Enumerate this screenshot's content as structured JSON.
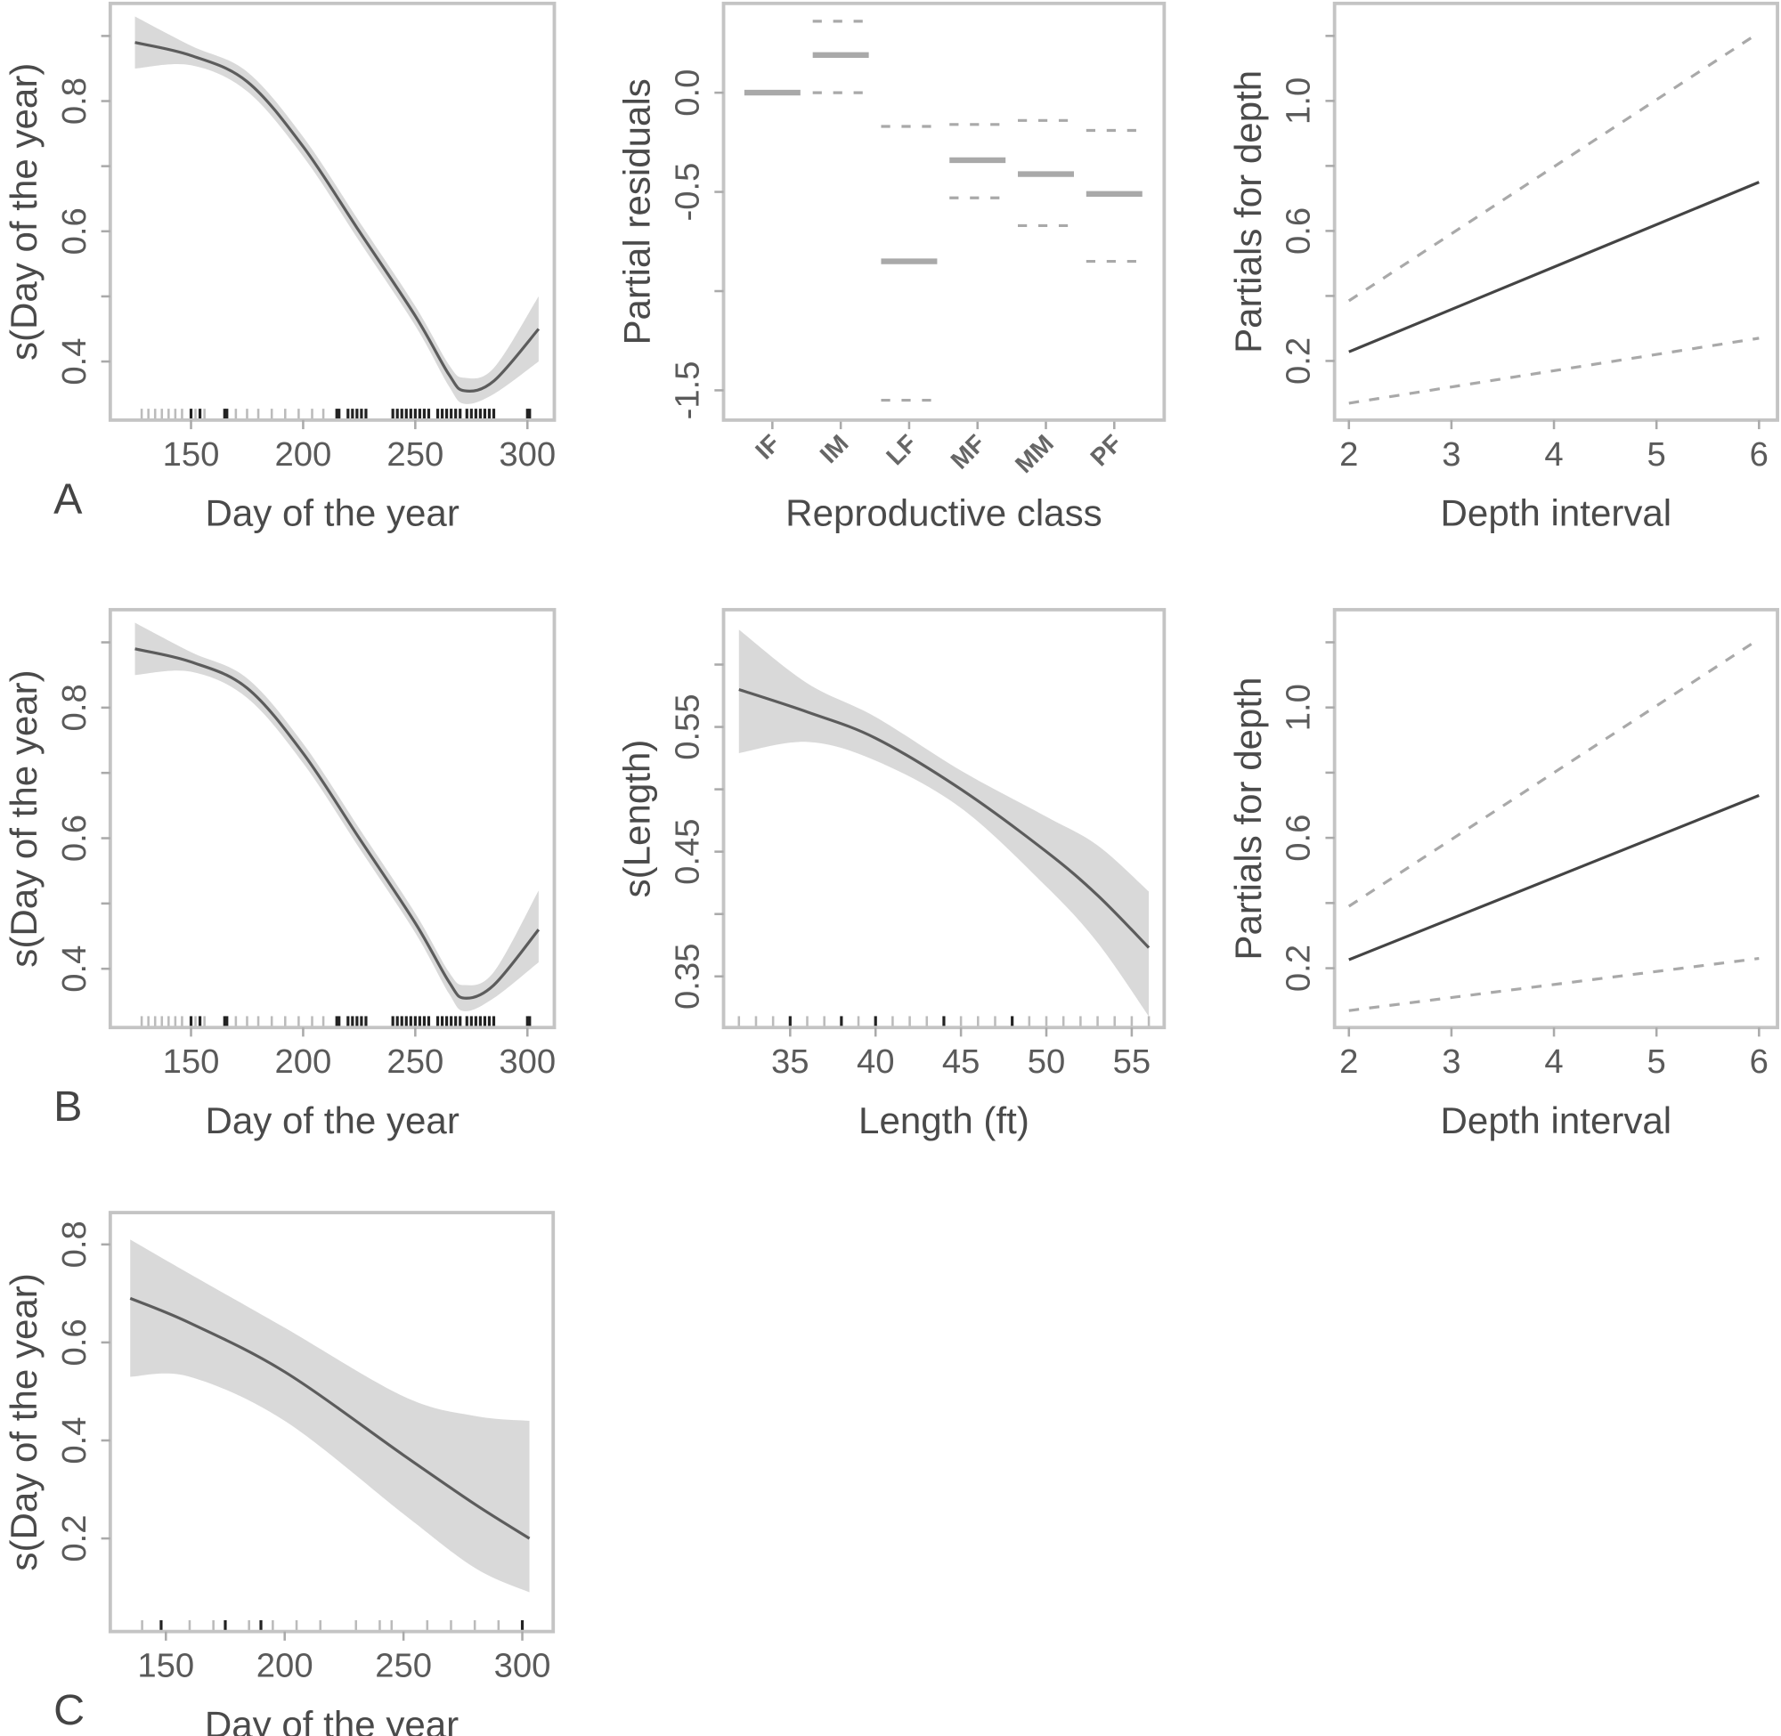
{
  "colors": {
    "band": "#d9d9d9",
    "fit_line": "#5c5c5c",
    "frame": "#c4c4c4",
    "factor": "#a9a9a9",
    "rug_dark": "#222222",
    "rug_light": "#bbbbbb"
  },
  "chart_data": [
    {
      "type": "line",
      "panel_label": "A",
      "xlabel": "Day of the year",
      "ylabel": "s(Day of the year)",
      "xlim": [
        114,
        312
      ],
      "ylim": [
        0.31,
        0.95
      ],
      "x_ticks": [
        150,
        200,
        250,
        300
      ],
      "x_tick_labels": [
        "150",
        "200",
        "250",
        "300"
      ],
      "y_ticks": [
        0.4,
        0.5,
        0.6,
        0.7,
        0.8,
        0.9
      ],
      "y_tick_labels": [
        "0.4",
        "",
        "0.6",
        "",
        "0.8",
        ""
      ],
      "fit": {
        "x": [
          125,
          150,
          175,
          200,
          225,
          250,
          265,
          272,
          285,
          305
        ],
        "y": [
          0.89,
          0.87,
          0.83,
          0.73,
          0.6,
          0.47,
          0.38,
          0.355,
          0.37,
          0.45
        ]
      },
      "ci_upper": [
        0.93,
        0.885,
        0.845,
        0.745,
        0.615,
        0.485,
        0.395,
        0.375,
        0.39,
        0.5
      ],
      "ci_lower": [
        0.85,
        0.855,
        0.815,
        0.715,
        0.585,
        0.455,
        0.362,
        0.335,
        0.35,
        0.4
      ],
      "rug_light": [
        128,
        131,
        134,
        137,
        140,
        143,
        146,
        152,
        156,
        170,
        175,
        180,
        186,
        192,
        198,
        204,
        209
      ],
      "rug_dark": [
        150,
        154,
        165,
        166,
        215,
        216,
        220,
        222,
        224,
        226,
        228,
        240,
        242,
        244,
        246,
        248,
        250,
        252,
        254,
        256,
        260,
        262,
        264,
        266,
        268,
        270,
        273,
        275,
        277,
        279,
        281,
        283,
        285,
        300,
        301
      ]
    },
    {
      "type": "bar",
      "panel_label": "",
      "xlabel": "Reproductive class",
      "ylabel": "Partial residuals",
      "categories": [
        "IF",
        "IM",
        "LF",
        "MF",
        "MM",
        "PF"
      ],
      "xlim": [
        0.286,
        6.73
      ],
      "ylim": [
        -1.65,
        0.45
      ],
      "y_ticks": [
        0.0,
        -0.5,
        -1.0,
        -1.5
      ],
      "y_tick_labels": [
        "0.0",
        "-0.5",
        "",
        "-1.5"
      ],
      "values": [
        0.0,
        0.19,
        -0.85,
        -0.34,
        -0.41,
        -0.51
      ],
      "ci_upper": [
        null,
        0.36,
        -0.17,
        -0.16,
        -0.14,
        -0.19
      ],
      "ci_lower": [
        null,
        0.0,
        -1.55,
        -0.53,
        -0.67,
        -0.85
      ]
    },
    {
      "type": "line",
      "panel_label": "",
      "xlabel": "Depth interval",
      "ylabel": "Partials for depth",
      "xlim": [
        1.86,
        6.18
      ],
      "ylim": [
        0.018,
        1.3
      ],
      "x_ticks": [
        2,
        3,
        4,
        5,
        6
      ],
      "x_tick_labels": [
        "2",
        "3",
        "4",
        "5",
        "6"
      ],
      "y_ticks": [
        0.2,
        0.4,
        0.6,
        0.8,
        1.0,
        1.2
      ],
      "y_tick_labels": [
        "0.2",
        "",
        "0.6",
        "",
        "1.0",
        ""
      ],
      "fit": {
        "x": [
          2,
          6
        ],
        "y": [
          0.228,
          0.75
        ]
      },
      "ci_upper": [
        0.385,
        1.21
      ],
      "ci_lower": [
        0.07,
        0.27
      ]
    },
    {
      "type": "line",
      "panel_label": "B",
      "xlabel": "Day of the year",
      "ylabel": "s(Day of the year)",
      "xlim": [
        114,
        312
      ],
      "ylim": [
        0.31,
        0.95
      ],
      "x_ticks": [
        150,
        200,
        250,
        300
      ],
      "x_tick_labels": [
        "150",
        "200",
        "250",
        "300"
      ],
      "y_ticks": [
        0.4,
        0.5,
        0.6,
        0.7,
        0.8,
        0.9
      ],
      "y_tick_labels": [
        "0.4",
        "",
        "0.6",
        "",
        "0.8",
        ""
      ],
      "fit": {
        "x": [
          125,
          150,
          175,
          200,
          225,
          250,
          265,
          272,
          285,
          305
        ],
        "y": [
          0.89,
          0.87,
          0.83,
          0.73,
          0.6,
          0.47,
          0.38,
          0.355,
          0.375,
          0.46
        ]
      },
      "ci_upper": [
        0.93,
        0.885,
        0.845,
        0.745,
        0.615,
        0.485,
        0.395,
        0.375,
        0.395,
        0.52
      ],
      "ci_lower": [
        0.85,
        0.855,
        0.815,
        0.715,
        0.585,
        0.455,
        0.362,
        0.335,
        0.355,
        0.41
      ],
      "rug_light": [
        128,
        131,
        134,
        137,
        140,
        143,
        146,
        152,
        156,
        170,
        175,
        180,
        186,
        192,
        198,
        204,
        209
      ],
      "rug_dark": [
        150,
        154,
        165,
        166,
        215,
        216,
        220,
        222,
        224,
        226,
        228,
        240,
        242,
        244,
        246,
        248,
        250,
        252,
        254,
        256,
        260,
        262,
        264,
        266,
        268,
        270,
        273,
        275,
        277,
        279,
        281,
        283,
        285,
        300,
        301
      ]
    },
    {
      "type": "line",
      "panel_label": "",
      "xlabel": "Length (ft)",
      "ylabel": "s(Length)",
      "xlim": [
        31.1,
        56.9
      ],
      "ylim": [
        0.309,
        0.644
      ],
      "x_ticks": [
        35,
        40,
        45,
        50,
        55
      ],
      "x_tick_labels": [
        "35",
        "40",
        "45",
        "50",
        "55"
      ],
      "y_ticks": [
        0.35,
        0.4,
        0.45,
        0.5,
        0.55,
        0.6
      ],
      "y_tick_labels": [
        "0.35",
        "",
        "0.45",
        "",
        "0.55",
        ""
      ],
      "fit": {
        "x": [
          32,
          36,
          40,
          45,
          50,
          53,
          56
        ],
        "y": [
          0.58,
          0.562,
          0.541,
          0.5,
          0.45,
          0.415,
          0.373
        ]
      },
      "ci_upper": [
        0.628,
        0.585,
        0.558,
        0.515,
        0.478,
        0.455,
        0.418
      ],
      "ci_lower": [
        0.529,
        0.538,
        0.523,
        0.485,
        0.422,
        0.377,
        0.318
      ],
      "rug_light": [
        32,
        33,
        34,
        35,
        36,
        37,
        38,
        39,
        40,
        41,
        42,
        43,
        44,
        45,
        46,
        47,
        48,
        49,
        50,
        51,
        52,
        53,
        54,
        55,
        56
      ],
      "rug_dark": [
        35,
        38,
        40,
        44,
        48
      ]
    },
    {
      "type": "line",
      "panel_label": "",
      "xlabel": "Depth interval",
      "ylabel": "Partials for depth",
      "xlim": [
        1.86,
        6.18
      ],
      "ylim": [
        0.018,
        1.3
      ],
      "x_ticks": [
        2,
        3,
        4,
        5,
        6
      ],
      "x_tick_labels": [
        "2",
        "3",
        "4",
        "5",
        "6"
      ],
      "y_ticks": [
        0.2,
        0.4,
        0.6,
        0.8,
        1.0,
        1.2
      ],
      "y_tick_labels": [
        "0.2",
        "",
        "0.6",
        "",
        "1.0",
        ""
      ],
      "fit": {
        "x": [
          2,
          6
        ],
        "y": [
          0.226,
          0.73
        ]
      },
      "ci_upper": [
        0.39,
        1.21
      ],
      "ci_lower": [
        0.07,
        0.23
      ]
    },
    {
      "type": "line",
      "panel_label": "C",
      "xlabel": "Day of the year",
      "ylabel": "s(Day of the year)",
      "xlim": [
        126.6,
        313
      ],
      "ylim": [
        0.01,
        0.865
      ],
      "x_ticks": [
        150,
        200,
        250,
        300
      ],
      "x_tick_labels": [
        "150",
        "200",
        "250",
        "300"
      ],
      "y_ticks": [
        0.2,
        0.4,
        0.6,
        0.8
      ],
      "y_tick_labels": [
        "0.2",
        "0.4",
        "0.6",
        "0.8"
      ],
      "fit": {
        "x": [
          135,
          160,
          200,
          250,
          280,
          303
        ],
        "y": [
          0.69,
          0.64,
          0.54,
          0.37,
          0.27,
          0.2
        ]
      },
      "ci_upper": [
        0.81,
        0.74,
        0.63,
        0.49,
        0.45,
        0.44
      ],
      "ci_lower": [
        0.53,
        0.53,
        0.44,
        0.25,
        0.14,
        0.09
      ],
      "rug_light": [
        140,
        160,
        170,
        185,
        195,
        205,
        215,
        230,
        240,
        245,
        260,
        270,
        280,
        290
      ],
      "rug_dark": [
        148,
        175,
        190,
        300
      ]
    }
  ]
}
